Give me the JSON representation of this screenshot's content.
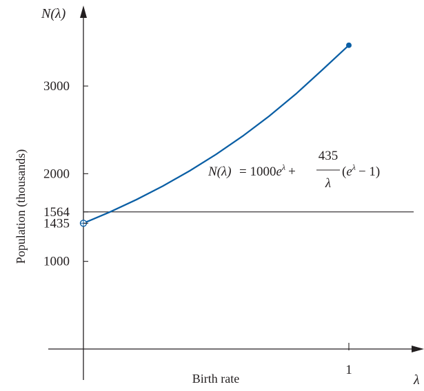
{
  "chart_data": {
    "type": "line",
    "ylabel_axis": "N(λ)",
    "xlabel_axis": "λ",
    "ylabel": "Population (thousands)",
    "xlabel": "Birth rate",
    "xlim": [
      0,
      1
    ],
    "ylim": [
      0,
      3500
    ],
    "x_ticks": [
      {
        "value": 1,
        "label": "1"
      }
    ],
    "y_ticks": [
      {
        "value": 1000,
        "label": "1000"
      },
      {
        "value": 1435,
        "label": "1435"
      },
      {
        "value": 1564,
        "label": "1564"
      },
      {
        "value": 2000,
        "label": "2000"
      },
      {
        "value": 3000,
        "label": "3000"
      }
    ],
    "series": [
      {
        "color": "#0b5fa5",
        "formula": "N(λ) = 1000e^λ + 435/λ (e^λ − 1)",
        "x": [
          0,
          0.1,
          0.2,
          0.3,
          0.4,
          0.5,
          0.6,
          0.7,
          0.8,
          0.9,
          1.0
        ],
        "y": [
          1435,
          1563.3,
          1704.7,
          1860.5,
          2032.1,
          2220.9,
          2428.7,
          2657.1,
          2908.3,
          3184.3,
          3465.6
        ],
        "start_marker": "open-circle",
        "end_marker": "filled-dot"
      }
    ],
    "reference_lines": [
      {
        "orientation": "horizontal",
        "y": 1564,
        "color": "#231f20"
      }
    ],
    "annotation": {
      "lhs": "N(λ)",
      "eq": "= 1000",
      "e1": "e",
      "sup1": "λ",
      "plus": "+",
      "num": "435",
      "den": "λ",
      "paren_open": "(",
      "e2": "e",
      "sup2": "λ",
      "tail": "− 1)"
    },
    "colors": {
      "curve": "#0b5fa5",
      "axes": "#231f20"
    }
  }
}
